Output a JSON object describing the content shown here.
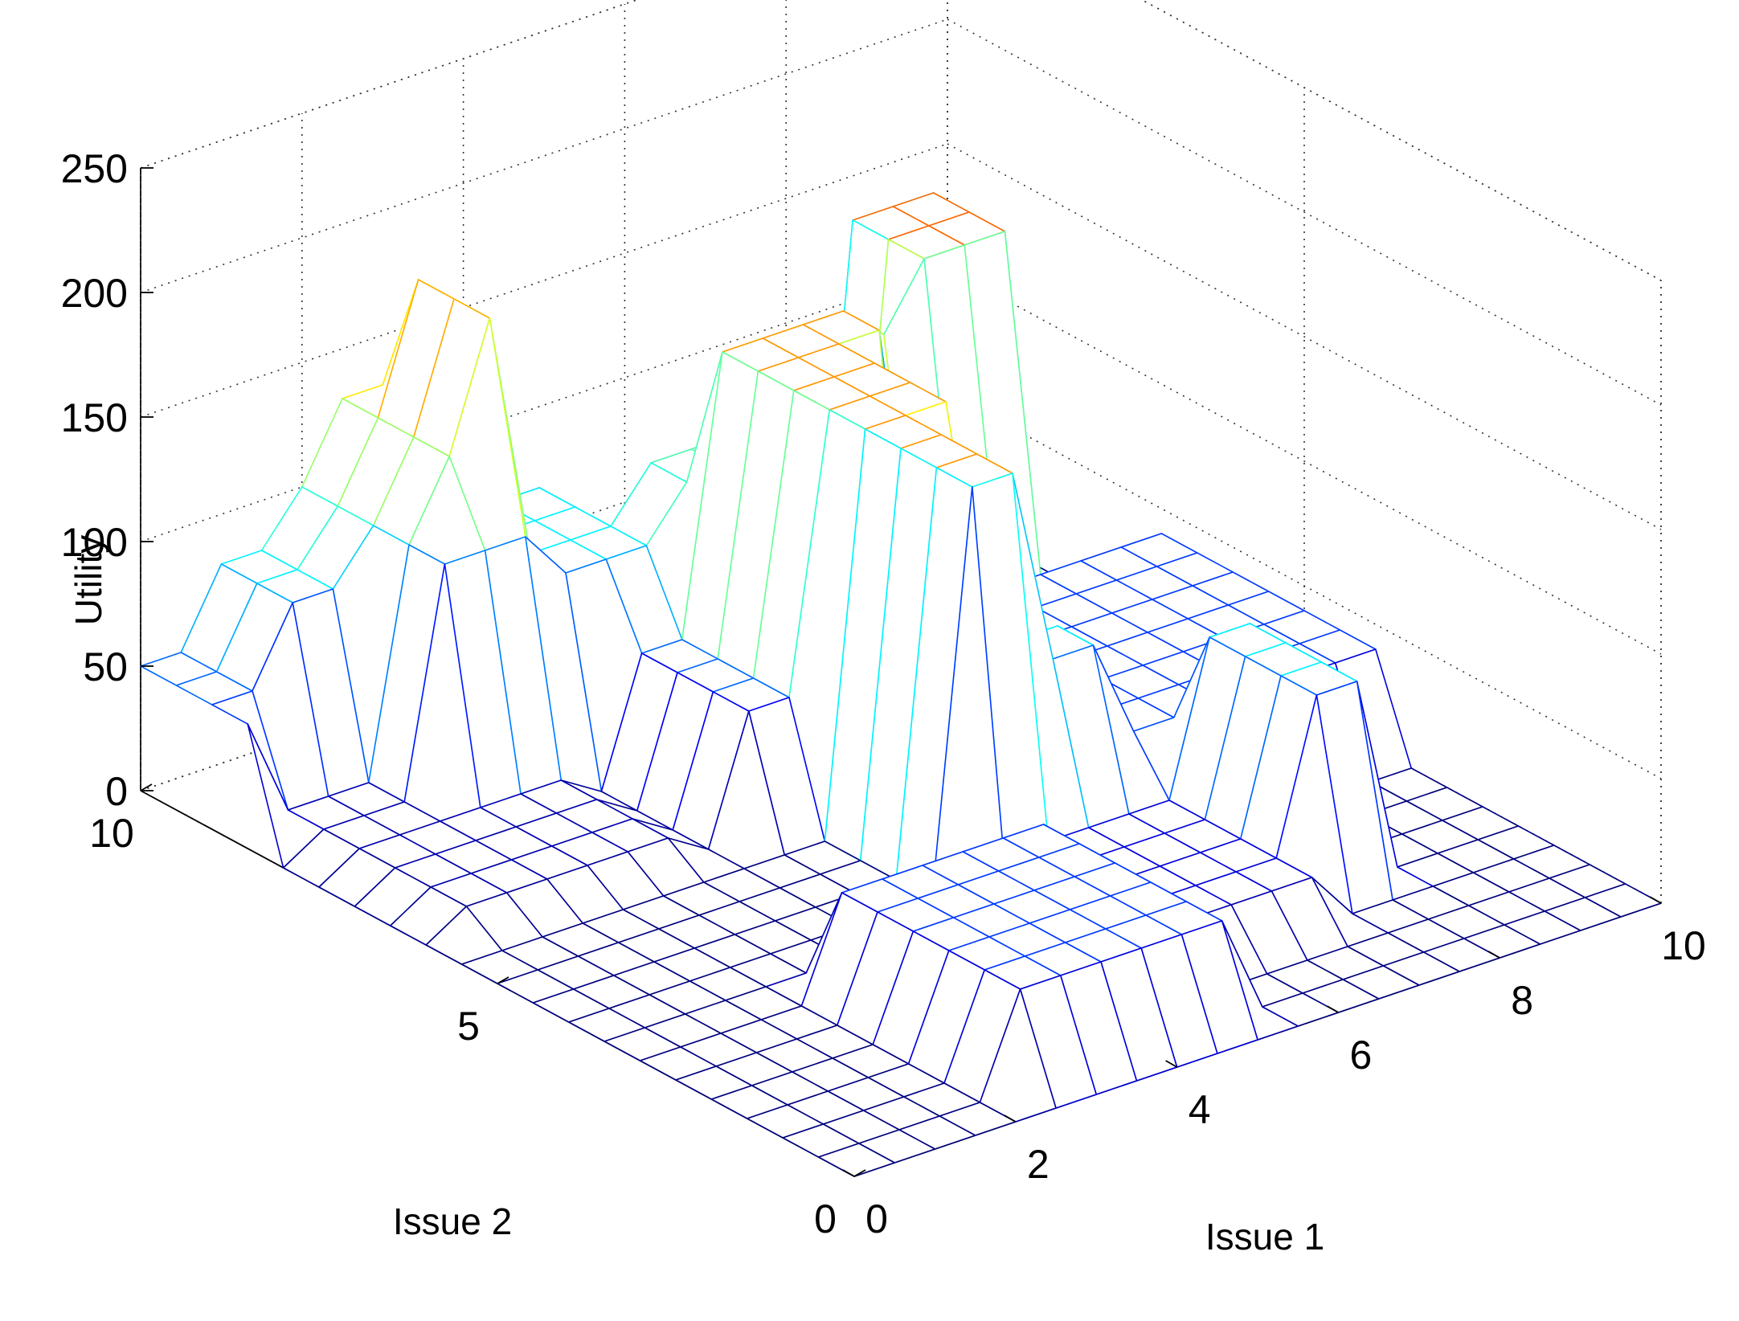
{
  "chart_data": {
    "type": "mesh3d",
    "title": "",
    "xlabel": "Issue 1",
    "ylabel": "Issue 2",
    "zlabel": "Utility",
    "xlim": [
      0,
      10
    ],
    "ylim": [
      0,
      10
    ],
    "zlim": [
      0,
      250
    ],
    "x_ticks": [
      "0",
      "2",
      "4",
      "6",
      "8",
      "10"
    ],
    "y_ticks": [
      "0",
      "5",
      "10"
    ],
    "z_ticks": [
      "0",
      "50",
      "100",
      "150",
      "200",
      "250"
    ],
    "grid": true,
    "colormap": "jet",
    "colormap_range": [
      0,
      220
    ],
    "grid_step": 0.5,
    "blocks": [
      {
        "issue1": [
          0.0,
          10.0
        ],
        "issue2": [
          0.0,
          10.0
        ],
        "utility": 0
      },
      {
        "issue1": [
          0.0,
          2.0
        ],
        "issue2": [
          8.5,
          10.0
        ],
        "utility": 50
      },
      {
        "issue1": [
          1.0,
          2.0
        ],
        "issue2": [
          9.0,
          10.0
        ],
        "utility": 80
      },
      {
        "issue1": [
          0.5,
          3.0
        ],
        "issue2": [
          6.0,
          8.5
        ],
        "utility": 10
      },
      {
        "issue1": [
          2.0,
          3.5
        ],
        "issue2": [
          8.0,
          10.0
        ],
        "utility": 100
      },
      {
        "issue1": [
          2.5,
          3.5
        ],
        "issue2": [
          8.5,
          10.0
        ],
        "utility": 130
      },
      {
        "issue1": [
          3.0,
          3.5
        ],
        "issue2": [
          8.5,
          9.5
        ],
        "utility": 180
      },
      {
        "issue1": [
          3.5,
          4.0
        ],
        "issue2": [
          8.0,
          9.5
        ],
        "utility": 120
      },
      {
        "issue1": [
          3.5,
          4.5
        ],
        "issue2": [
          8.0,
          9.5
        ],
        "utility": 80
      },
      {
        "issue1": [
          4.0,
          5.5
        ],
        "issue2": [
          6.0,
          7.5
        ],
        "utility": 50
      },
      {
        "issue1": [
          5.0,
          6.0
        ],
        "issue2": [
          7.0,
          8.5
        ],
        "utility": 100
      },
      {
        "issue1": [
          2.5,
          5.0
        ],
        "issue2": [
          0.5,
          3.0
        ],
        "utility": 40
      },
      {
        "issue1": [
          5.0,
          6.5
        ],
        "issue2": [
          4.0,
          7.5
        ],
        "utility": 160
      },
      {
        "issue1": [
          7.0,
          7.5
        ],
        "issue2": [
          6.5,
          7.5
        ],
        "utility": 145
      },
      {
        "issue1": [
          7.5,
          8.5
        ],
        "issue2": [
          6.5,
          8.5
        ],
        "utility": 170
      },
      {
        "issue1": [
          6.0,
          8.0
        ],
        "issue2": [
          2.0,
          5.0
        ],
        "utility": 80
      },
      {
        "issue1": [
          6.5,
          8.0
        ],
        "issue2": [
          5.0,
          6.5
        ],
        "utility": 20
      },
      {
        "issue1": [
          7.0,
          10.0
        ],
        "issue2": [
          4.0,
          7.0
        ],
        "utility": 40
      },
      {
        "issue1": [
          5.5,
          7.0
        ],
        "issue2": [
          1.5,
          3.5
        ],
        "utility": 20
      }
    ]
  }
}
